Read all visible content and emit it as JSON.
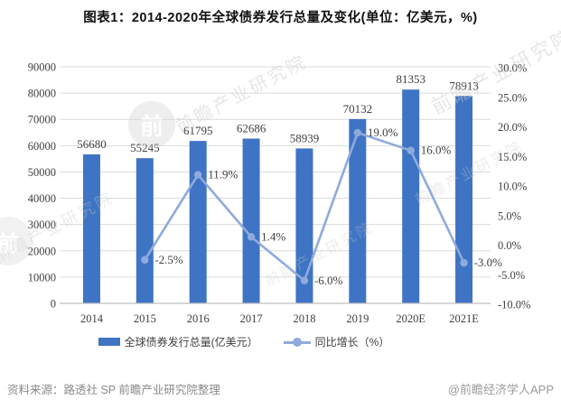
{
  "title": "图表1：2014-2020年全球债券发行总量及变化(单位：亿美元，%)",
  "footer": {
    "source": "资料来源：路透社 SP 前瞻产业研究院整理",
    "brand": "@前瞻经济学人APP"
  },
  "watermark": {
    "text": "前瞻产业研究院",
    "logo_text": "前"
  },
  "colors": {
    "bar": "#3F74C4",
    "line": "#8FAADC",
    "grid": "#DCDCDC",
    "axis": "#BFBFBF",
    "label_text": "#404040",
    "footer_text": "#8a8a8a"
  },
  "chart_data": {
    "type": "bar+line combo",
    "categories": [
      "2014",
      "2015",
      "2016",
      "2017",
      "2018",
      "2019",
      "2020E",
      "2021E"
    ],
    "series": [
      {
        "name": "全球债券发行总量(亿美元）",
        "type": "bar",
        "axis": "left",
        "values": [
          56680,
          55245,
          61795,
          62686,
          58939,
          70132,
          81353,
          78913
        ],
        "labels": [
          "56680",
          "55245",
          "61795",
          "62686",
          "58939",
          "70132",
          "81353",
          "78913"
        ]
      },
      {
        "name": "同比增长（%）",
        "type": "line",
        "axis": "right",
        "values": [
          null,
          -2.5,
          11.9,
          1.4,
          -6.0,
          19.0,
          16.0,
          -3.0
        ],
        "labels": [
          null,
          "-2.5%",
          "11.9%",
          "1.4%",
          "-6.0%",
          "19.0%",
          "16.0%",
          "-3.0%"
        ]
      }
    ],
    "left_axis": {
      "min": 0,
      "max": 90000,
      "step": 10000,
      "ticks": [
        "0",
        "10000",
        "20000",
        "30000",
        "40000",
        "50000",
        "60000",
        "70000",
        "80000",
        "90000"
      ]
    },
    "right_axis": {
      "min": -10,
      "max": 30,
      "step": 5,
      "ticks": [
        "-10.0%",
        "-5.0%",
        "0.0%",
        "5.0%",
        "10.0%",
        "15.0%",
        "20.0%",
        "25.0%",
        "30.0%"
      ]
    },
    "legend": [
      "全球债券发行总量(亿美元）",
      "同比增长（%）"
    ],
    "legend_position": "bottom",
    "grid": true
  }
}
